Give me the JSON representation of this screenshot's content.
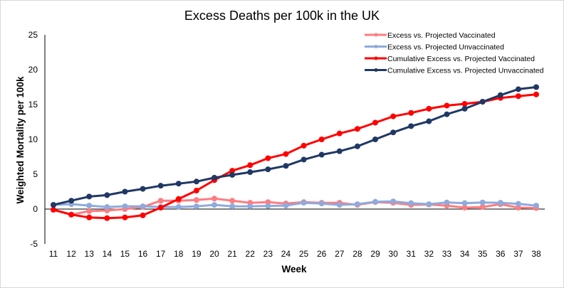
{
  "chart_data": {
    "type": "line",
    "title": "Excess Deaths per 100k in the UK",
    "xlabel": "Week",
    "ylabel": "Weighted Mortality per 100k",
    "ylim": [
      -5,
      25
    ],
    "yticks": [
      -5,
      0,
      5,
      10,
      15,
      20,
      25
    ],
    "grid": false,
    "legend_position": "top-right",
    "x": [
      11,
      12,
      13,
      14,
      15,
      16,
      17,
      18,
      19,
      20,
      21,
      22,
      23,
      24,
      25,
      26,
      27,
      28,
      29,
      30,
      31,
      32,
      33,
      34,
      35,
      36,
      37,
      38
    ],
    "series": [
      {
        "name": "Excess vs. Projected Vaccinated",
        "color": "#ff7c80",
        "values": [
          -0.1,
          -0.8,
          -0.3,
          -0.2,
          0.0,
          0.3,
          1.2,
          1.2,
          1.3,
          1.5,
          1.2,
          0.9,
          1.0,
          0.8,
          1.0,
          0.9,
          0.9,
          0.6,
          1.0,
          0.9,
          0.6,
          0.65,
          0.5,
          0.2,
          0.3,
          0.7,
          0.2,
          0.15
        ]
      },
      {
        "name": "Excess vs. Projected Unvaccinated",
        "color": "#8faadc",
        "values": [
          0.6,
          0.7,
          0.5,
          0.3,
          0.4,
          0.4,
          0.3,
          0.3,
          0.4,
          0.6,
          0.4,
          0.4,
          0.45,
          0.5,
          0.9,
          0.8,
          0.6,
          0.7,
          1.05,
          1.1,
          0.85,
          0.7,
          0.95,
          0.85,
          0.95,
          0.9,
          0.75,
          0.5
        ]
      },
      {
        "name": "Cumulative Excess vs. Projected Vaccinated",
        "color": "#ff0000",
        "values": [
          -0.1,
          -0.8,
          -1.2,
          -1.3,
          -1.2,
          -0.9,
          0.2,
          1.45,
          2.65,
          4.15,
          5.5,
          6.3,
          7.3,
          7.9,
          9.1,
          10.0,
          10.85,
          11.5,
          12.4,
          13.3,
          13.8,
          14.4,
          14.85,
          15.1,
          15.4,
          15.95,
          16.2,
          16.45
        ]
      },
      {
        "name": "Cumulative Excess vs. Projected Unvaccinated",
        "color": "#203864",
        "values": [
          0.6,
          1.2,
          1.8,
          2.0,
          2.5,
          2.9,
          3.35,
          3.65,
          3.95,
          4.5,
          4.9,
          5.3,
          5.7,
          6.2,
          7.1,
          7.8,
          8.3,
          9.0,
          10.0,
          11.0,
          11.9,
          12.6,
          13.6,
          14.4,
          15.4,
          16.35,
          17.2,
          17.5
        ]
      }
    ]
  }
}
